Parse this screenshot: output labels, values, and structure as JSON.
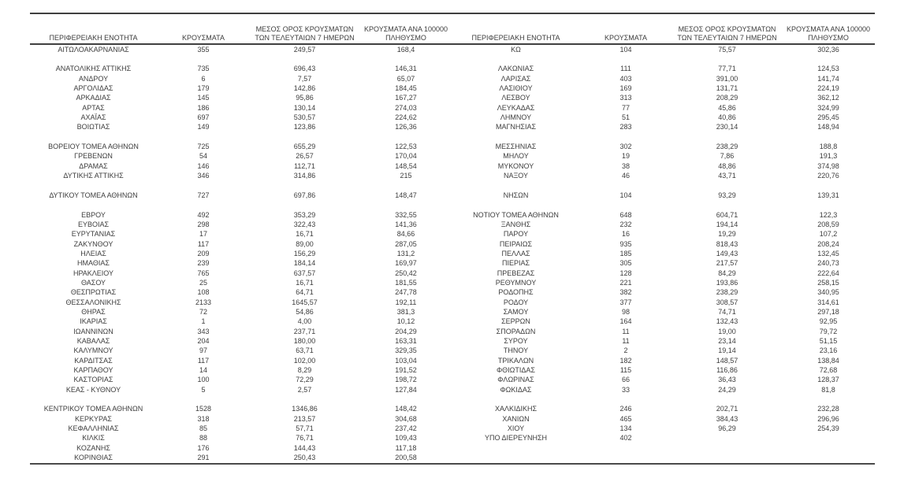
{
  "page": {
    "background_color": "#ffffff",
    "text_color": "#3d3d3d",
    "rule_color": "#404040"
  },
  "table": {
    "columns": [
      "ΠΕΡΙΦΕΡΕΙΑΚΗ ΕΝΟΤΗΤΑ",
      "ΚΡΟΥΣΜΑΤΑ",
      "ΜΕΣΟΣ ΟΡΟΣ ΚΡΟΥΣΜΑΤΩΝ\nΤΩΝ ΤΕΛΕΥΤΑΙΩΝ 7 ΗΜΕΡΩΝ",
      "ΚΡΟΥΣΜΑΤΑ ΑΝΑ 100000\nΠΛΗΘΥΣΜΟ"
    ],
    "left_rows": [
      [
        "ΑΙΤΩΛΟΑΚΑΡΝΑΝΙΑΣ",
        "355",
        "249,57",
        "168,4"
      ],
      null,
      [
        "ΑΝΑΤΟΛΙΚΗΣ ΑΤΤΙΚΗΣ",
        "735",
        "696,43",
        "146,31"
      ],
      [
        "ΑΝΔΡΟΥ",
        "6",
        "7,57",
        "65,07"
      ],
      [
        "ΑΡΓΟΛΙΔΑΣ",
        "179",
        "142,86",
        "184,45"
      ],
      [
        "ΑΡΚΑΔΙΑΣ",
        "145",
        "95,86",
        "167,27"
      ],
      [
        "ΑΡΤΑΣ",
        "186",
        "130,14",
        "274,03"
      ],
      [
        "ΑΧΑΪΑΣ",
        "697",
        "530,57",
        "224,62"
      ],
      [
        "ΒΟΙΩΤΙΑΣ",
        "149",
        "123,86",
        "126,36"
      ],
      null,
      [
        "ΒΟΡΕΙΟΥ ΤΟΜΕΑ ΑΘΗΝΩΝ",
        "725",
        "655,29",
        "122,53"
      ],
      [
        "ΓΡΕΒΕΝΩΝ",
        "54",
        "26,57",
        "170,04"
      ],
      [
        "ΔΡΑΜΑΣ",
        "146",
        "112,71",
        "148,54"
      ],
      [
        "ΔΥΤΙΚΗΣ ΑΤΤΙΚΗΣ",
        "346",
        "314,86",
        "215"
      ],
      null,
      [
        "ΔΥΤΙΚΟΥ ΤΟΜΕΑ ΑΘΗΝΩΝ",
        "727",
        "697,86",
        "148,47"
      ],
      null,
      [
        "ΕΒΡΟΥ",
        "492",
        "353,29",
        "332,55"
      ],
      [
        "ΕΥΒΟΙΑΣ",
        "298",
        "322,43",
        "141,36"
      ],
      [
        "ΕΥΡΥΤΑΝΙΑΣ",
        "17",
        "16,71",
        "84,66"
      ],
      [
        "ΖΑΚΥΝΘΟΥ",
        "117",
        "89,00",
        "287,05"
      ],
      [
        "ΗΛΕΙΑΣ",
        "209",
        "156,29",
        "131,2"
      ],
      [
        "ΗΜΑΘΙΑΣ",
        "239",
        "184,14",
        "169,97"
      ],
      [
        "ΗΡΑΚΛΕΙΟΥ",
        "765",
        "637,57",
        "250,42"
      ],
      [
        "ΘΑΣΟΥ",
        "25",
        "16,71",
        "181,55"
      ],
      [
        "ΘΕΣΠΡΩΤΙΑΣ",
        "108",
        "64,71",
        "247,78"
      ],
      [
        "ΘΕΣΣΑΛΟΝΙΚΗΣ",
        "2133",
        "1645,57",
        "192,11"
      ],
      [
        "ΘΗΡΑΣ",
        "72",
        "54,86",
        "381,3"
      ],
      [
        "ΙΚΑΡΙΑΣ",
        "1",
        "4,00",
        "10,12"
      ],
      [
        "ΙΩΑΝΝΙΝΩΝ",
        "343",
        "237,71",
        "204,29"
      ],
      [
        "ΚΑΒΑΛΑΣ",
        "204",
        "180,00",
        "163,31"
      ],
      [
        "ΚΑΛΥΜΝΟΥ",
        "97",
        "63,71",
        "329,35"
      ],
      [
        "ΚΑΡΔΙΤΣΑΣ",
        "117",
        "102,00",
        "103,04"
      ],
      [
        "ΚΑΡΠΑΘΟΥ",
        "14",
        "8,29",
        "191,52"
      ],
      [
        "ΚΑΣΤΟΡΙΑΣ",
        "100",
        "72,29",
        "198,72"
      ],
      [
        "ΚΕΑΣ - ΚΥΘΝΟΥ",
        "5",
        "2,57",
        "127,84"
      ],
      null,
      [
        "ΚΕΝΤΡΙΚΟΥ ΤΟΜΕΑ ΑΘΗΝΩΝ",
        "1528",
        "1346,86",
        "148,42"
      ],
      [
        "ΚΕΡΚΥΡΑΣ",
        "318",
        "213,57",
        "304,68"
      ],
      [
        "ΚΕΦΑΛΛΗΝΙΑΣ",
        "85",
        "57,71",
        "237,42"
      ],
      [
        "ΚΙΛΚΙΣ",
        "88",
        "76,71",
        "109,43"
      ],
      [
        "ΚΟΖΑΝΗΣ",
        "176",
        "144,43",
        "117,18"
      ],
      [
        "ΚΟΡΙΝΘΙΑΣ",
        "291",
        "250,43",
        "200,58"
      ]
    ],
    "right_rows": [
      [
        "ΚΩ",
        "104",
        "75,57",
        "302,36"
      ],
      null,
      [
        "ΛΑΚΩΝΙΑΣ",
        "111",
        "77,71",
        "124,53"
      ],
      [
        "ΛΑΡΙΣΑΣ",
        "403",
        "391,00",
        "141,74"
      ],
      [
        "ΛΑΣΙΘΙΟΥ",
        "169",
        "131,71",
        "224,19"
      ],
      [
        "ΛΕΣΒΟΥ",
        "313",
        "208,29",
        "362,12"
      ],
      [
        "ΛΕΥΚΑΔΑΣ",
        "77",
        "45,86",
        "324,99"
      ],
      [
        "ΛΗΜΝΟΥ",
        "51",
        "40,86",
        "295,45"
      ],
      [
        "ΜΑΓΝΗΣΙΑΣ",
        "283",
        "230,14",
        "148,94"
      ],
      null,
      [
        "ΜΕΣΣΗΝΙΑΣ",
        "302",
        "238,29",
        "188,8"
      ],
      [
        "ΜΗΛΟΥ",
        "19",
        "7,86",
        "191,3"
      ],
      [
        "ΜΥΚΟΝΟΥ",
        "38",
        "48,86",
        "374,98"
      ],
      [
        "ΝΑΞΟΥ",
        "46",
        "43,71",
        "220,76"
      ],
      null,
      [
        "ΝΗΣΩΝ",
        "104",
        "93,29",
        "139,31"
      ],
      null,
      [
        "ΝΟΤΙΟΥ ΤΟΜΕΑ ΑΘΗΝΩΝ",
        "648",
        "604,71",
        "122,3"
      ],
      [
        "ΞΑΝΘΗΣ",
        "232",
        "194,14",
        "208,59"
      ],
      [
        "ΠΑΡΟΥ",
        "16",
        "19,29",
        "107,2"
      ],
      [
        "ΠΕΙΡΑΙΩΣ",
        "935",
        "818,43",
        "208,24"
      ],
      [
        "ΠΕΛΛΑΣ",
        "185",
        "149,43",
        "132,45"
      ],
      [
        "ΠΙΕΡΙΑΣ",
        "305",
        "217,57",
        "240,73"
      ],
      [
        "ΠΡΕΒΕΖΑΣ",
        "128",
        "84,29",
        "222,64"
      ],
      [
        "ΡΕΘΥΜΝΟΥ",
        "221",
        "193,86",
        "258,15"
      ],
      [
        "ΡΟΔΟΠΗΣ",
        "382",
        "238,29",
        "340,95"
      ],
      [
        "ΡΟΔΟΥ",
        "377",
        "308,57",
        "314,61"
      ],
      [
        "ΣΑΜΟΥ",
        "98",
        "74,71",
        "297,18"
      ],
      [
        "ΣΕΡΡΩΝ",
        "164",
        "132,43",
        "92,95"
      ],
      [
        "ΣΠΟΡΑΔΩΝ",
        "11",
        "19,00",
        "79,72"
      ],
      [
        "ΣΥΡΟΥ",
        "11",
        "23,14",
        "51,15"
      ],
      [
        "ΤΗΝΟΥ",
        "2",
        "19,14",
        "23,16"
      ],
      [
        "ΤΡΙΚΑΛΩΝ",
        "182",
        "148,57",
        "138,84"
      ],
      [
        "ΦΘΙΩΤΙΔΑΣ",
        "115",
        "116,86",
        "72,68"
      ],
      [
        "ΦΛΩΡΙΝΑΣ",
        "66",
        "36,43",
        "128,37"
      ],
      [
        "ΦΩΚΙΔΑΣ",
        "33",
        "24,29",
        "81,8"
      ],
      null,
      [
        "ΧΑΛΚΙΔΙΚΗΣ",
        "246",
        "202,71",
        "232,28"
      ],
      [
        "ΧΑΝΙΩΝ",
        "465",
        "384,43",
        "296,96"
      ],
      [
        "ΧΙΟΥ",
        "134",
        "96,29",
        "254,39"
      ],
      [
        "ΥΠΟ ΔΙΕΡΕΥΝΗΣΗ",
        "402",
        "",
        ""
      ],
      null,
      null
    ]
  }
}
